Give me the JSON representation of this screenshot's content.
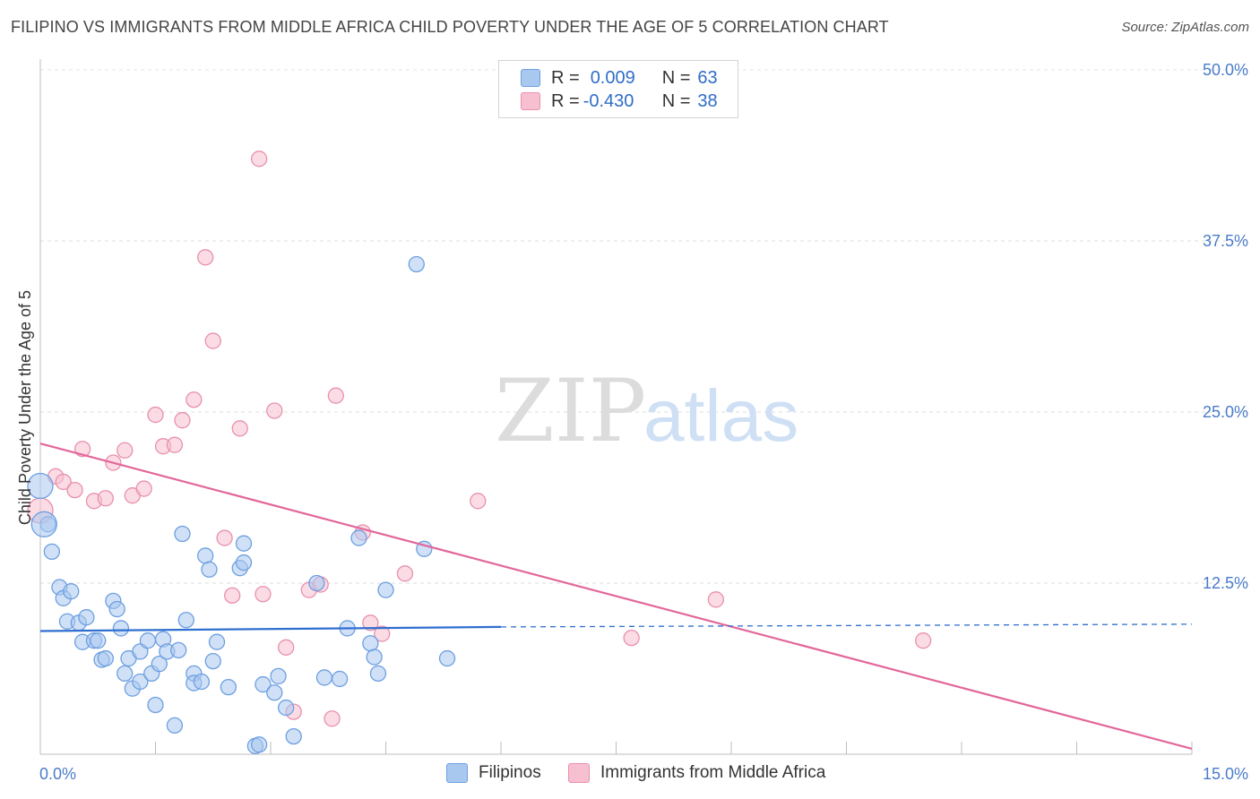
{
  "title": "FILIPINO VS IMMIGRANTS FROM MIDDLE AFRICA CHILD POVERTY UNDER THE AGE OF 5 CORRELATION CHART",
  "source": "Source: ZipAtlas.com",
  "watermark": {
    "zip": "ZIP",
    "atlas": "atlas"
  },
  "legend": {
    "r_label": "R =",
    "n_label": "N =",
    "rows": [
      {
        "r": "0.009",
        "n": "63"
      },
      {
        "r": "-0.430",
        "n": "38"
      }
    ]
  },
  "colors": {
    "blue_fill": "#a9c8f0",
    "blue_stroke": "#6d9fe0",
    "blue_line": "#2f6fd0",
    "pink_fill": "#f7c0d0",
    "pink_stroke": "#e890ad",
    "pink_line": "#e2679a",
    "tick_color": "#4a7cc9"
  },
  "chart_data": {
    "type": "scatter",
    "title": "FILIPINO VS IMMIGRANTS FROM MIDDLE AFRICA CHILD POVERTY UNDER THE AGE OF 5 CORRELATION CHART",
    "xlabel": "",
    "ylabel": "Child Poverty Under the Age of 5",
    "xlim": [
      0,
      15
    ],
    "ylim": [
      0,
      50
    ],
    "x_tick_labels": [
      "0.0%",
      "15.0%"
    ],
    "y_ticks": [
      12.5,
      25.0,
      37.5,
      50.0
    ],
    "y_tick_labels": [
      "12.5%",
      "25.0%",
      "37.5%",
      "50.0%"
    ],
    "legend_position": "bottom-center",
    "series": [
      {
        "name": "Filipinos",
        "color": "blue",
        "r": 0.009,
        "n": 63,
        "trend": {
          "x0": 0.0,
          "y0": 9.0,
          "x1": 6.0,
          "y1": 9.3,
          "dashed_x1": 15.0,
          "dashed_y1": 9.5
        },
        "points": [
          [
            0.0,
            19.6
          ],
          [
            0.1,
            16.8
          ],
          [
            0.15,
            14.8
          ],
          [
            0.25,
            12.2
          ],
          [
            0.3,
            11.4
          ],
          [
            0.4,
            11.9
          ],
          [
            0.35,
            9.7
          ],
          [
            0.5,
            9.6
          ],
          [
            0.6,
            10.0
          ],
          [
            0.55,
            8.2
          ],
          [
            0.7,
            8.3
          ],
          [
            0.75,
            8.3
          ],
          [
            0.8,
            6.9
          ],
          [
            0.85,
            7.0
          ],
          [
            0.95,
            11.2
          ],
          [
            1.0,
            10.6
          ],
          [
            1.05,
            9.2
          ],
          [
            1.1,
            5.9
          ],
          [
            1.15,
            7.0
          ],
          [
            1.2,
            4.8
          ],
          [
            1.3,
            5.3
          ],
          [
            1.3,
            7.5
          ],
          [
            1.4,
            8.3
          ],
          [
            1.45,
            5.9
          ],
          [
            1.5,
            3.6
          ],
          [
            1.55,
            6.6
          ],
          [
            1.6,
            8.4
          ],
          [
            1.65,
            7.5
          ],
          [
            1.75,
            2.1
          ],
          [
            1.8,
            7.6
          ],
          [
            1.85,
            16.1
          ],
          [
            1.9,
            9.8
          ],
          [
            2.0,
            5.9
          ],
          [
            2.0,
            5.2
          ],
          [
            2.1,
            5.3
          ],
          [
            2.15,
            14.5
          ],
          [
            2.2,
            13.5
          ],
          [
            2.25,
            6.8
          ],
          [
            2.3,
            8.2
          ],
          [
            2.45,
            4.9
          ],
          [
            2.6,
            13.6
          ],
          [
            2.65,
            14.0
          ],
          [
            2.65,
            15.4
          ],
          [
            2.8,
            0.6
          ],
          [
            2.85,
            0.7
          ],
          [
            2.9,
            5.1
          ],
          [
            3.05,
            4.5
          ],
          [
            3.1,
            5.7
          ],
          [
            3.2,
            3.4
          ],
          [
            3.3,
            1.3
          ],
          [
            3.6,
            12.5
          ],
          [
            3.7,
            5.6
          ],
          [
            3.9,
            5.5
          ],
          [
            4.0,
            9.2
          ],
          [
            4.15,
            15.8
          ],
          [
            4.3,
            8.1
          ],
          [
            4.35,
            7.1
          ],
          [
            4.4,
            5.9
          ],
          [
            4.5,
            12.0
          ],
          [
            4.9,
            35.8
          ],
          [
            5.0,
            15.0
          ],
          [
            5.3,
            7.0
          ],
          [
            0.05,
            16.8
          ]
        ]
      },
      {
        "name": "Immigrants from Middle Africa",
        "color": "pink",
        "r": -0.43,
        "n": 38,
        "trend": {
          "x0": 0.0,
          "y0": 22.7,
          "x1": 15.0,
          "y1": 0.4
        },
        "points": [
          [
            0.0,
            17.8
          ],
          [
            0.2,
            20.3
          ],
          [
            0.3,
            19.9
          ],
          [
            0.45,
            19.3
          ],
          [
            0.55,
            22.3
          ],
          [
            0.7,
            18.5
          ],
          [
            0.85,
            18.7
          ],
          [
            0.95,
            21.3
          ],
          [
            1.1,
            22.2
          ],
          [
            1.2,
            18.9
          ],
          [
            1.35,
            19.4
          ],
          [
            1.5,
            24.8
          ],
          [
            1.6,
            22.5
          ],
          [
            1.75,
            22.6
          ],
          [
            1.85,
            24.4
          ],
          [
            2.0,
            25.9
          ],
          [
            2.15,
            36.3
          ],
          [
            2.25,
            30.2
          ],
          [
            2.4,
            15.8
          ],
          [
            2.5,
            11.6
          ],
          [
            2.6,
            23.8
          ],
          [
            2.85,
            43.5
          ],
          [
            2.9,
            11.7
          ],
          [
            3.05,
            25.1
          ],
          [
            3.2,
            7.8
          ],
          [
            3.3,
            3.1
          ],
          [
            3.5,
            12.0
          ],
          [
            3.65,
            12.4
          ],
          [
            3.8,
            2.6
          ],
          [
            3.85,
            26.2
          ],
          [
            4.2,
            16.2
          ],
          [
            4.3,
            9.6
          ],
          [
            4.45,
            8.8
          ],
          [
            4.75,
            13.2
          ],
          [
            5.7,
            18.5
          ],
          [
            7.7,
            8.5
          ],
          [
            8.8,
            11.3
          ],
          [
            11.5,
            8.3
          ]
        ]
      }
    ]
  }
}
